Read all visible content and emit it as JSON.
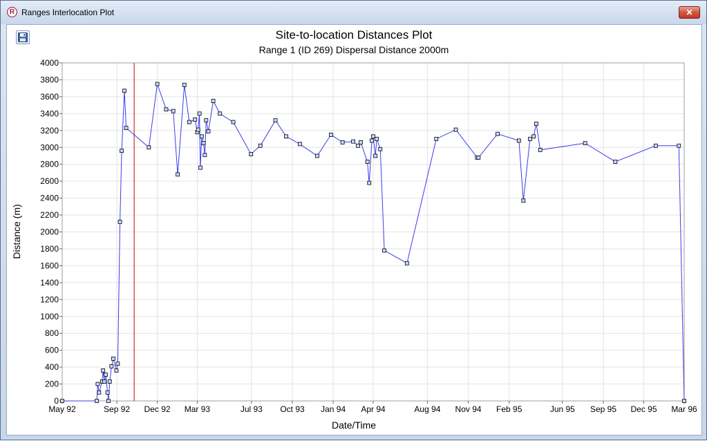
{
  "window": {
    "title": "Ranges Interlocation Plot",
    "app_icon": "r-logo-icon",
    "close_label": "✕"
  },
  "toolbar": {
    "save_icon": "floppy-disk-icon"
  },
  "colors": {
    "series": "#3a3aee",
    "marker_fill": "#c7d9ff",
    "marker_stroke": "#000000",
    "reference_line": "#cc0000",
    "grid": "#e3e3e3"
  },
  "chart_data": {
    "type": "line",
    "title": "Site-to-location Distances Plot",
    "subtitle": "Range 1 (ID 269) Dispersal Distance 2000m",
    "xlabel": "Date/Time",
    "ylabel": "Distance (m)",
    "xlim": [
      "1992-05-01",
      "1996-03-01"
    ],
    "ylim": [
      0,
      4000
    ],
    "grid": true,
    "legend": "none",
    "x_ticks": [
      {
        "date": "1992-05-01",
        "label": "May 92"
      },
      {
        "date": "1992-09-01",
        "label": "Sep 92"
      },
      {
        "date": "1992-12-01",
        "label": "Dec 92"
      },
      {
        "date": "1993-03-01",
        "label": "Mar 93"
      },
      {
        "date": "1993-07-01",
        "label": "Jul 93"
      },
      {
        "date": "1993-10-01",
        "label": "Oct 93"
      },
      {
        "date": "1994-01-01",
        "label": "Jan 94"
      },
      {
        "date": "1994-04-01",
        "label": "Apr 94"
      },
      {
        "date": "1994-08-01",
        "label": "Aug 94"
      },
      {
        "date": "1994-11-01",
        "label": "Nov 94"
      },
      {
        "date": "1995-02-01",
        "label": "Feb 95"
      },
      {
        "date": "1995-06-01",
        "label": "Jun 95"
      },
      {
        "date": "1995-09-01",
        "label": "Sep 95"
      },
      {
        "date": "1995-12-01",
        "label": "Dec 95"
      },
      {
        "date": "1996-03-01",
        "label": "Mar 96"
      }
    ],
    "y_ticks": [
      {
        "value": 0,
        "label": "0"
      },
      {
        "value": 200,
        "label": "200"
      },
      {
        "value": 400,
        "label": "400"
      },
      {
        "value": 600,
        "label": "600"
      },
      {
        "value": 800,
        "label": "800"
      },
      {
        "value": 1000,
        "label": "1000"
      },
      {
        "value": 1200,
        "label": "1200"
      },
      {
        "value": 1400,
        "label": "1400"
      },
      {
        "value": 1600,
        "label": "1600"
      },
      {
        "value": 1800,
        "label": "1800"
      },
      {
        "value": 2000,
        "label": "2000"
      },
      {
        "value": 2200,
        "label": "2200"
      },
      {
        "value": 2400,
        "label": "2400"
      },
      {
        "value": 2600,
        "label": "2600"
      },
      {
        "value": 2800,
        "label": "2800"
      },
      {
        "value": 3000,
        "label": "3000"
      },
      {
        "value": 3200,
        "label": "3200"
      },
      {
        "value": 3400,
        "label": "3400"
      },
      {
        "value": 3600,
        "label": "3600"
      },
      {
        "value": 3800,
        "label": "3800"
      },
      {
        "value": 4000,
        "label": "4000"
      }
    ],
    "reference_line": {
      "x": "1992-10-10"
    },
    "series": [
      {
        "points": [
          [
            "1992-05-01",
            0
          ],
          [
            "1992-07-18",
            0
          ],
          [
            "1992-07-20",
            200
          ],
          [
            "1992-07-23",
            100
          ],
          [
            "1992-07-30",
            230
          ],
          [
            "1992-08-01",
            360
          ],
          [
            "1992-08-04",
            230
          ],
          [
            "1992-08-07",
            310
          ],
          [
            "1992-08-11",
            100
          ],
          [
            "1992-08-13",
            0
          ],
          [
            "1992-08-16",
            230
          ],
          [
            "1992-08-20",
            410
          ],
          [
            "1992-08-24",
            500
          ],
          [
            "1992-08-31",
            360
          ],
          [
            "1992-09-03",
            440
          ],
          [
            "1992-09-08",
            2120
          ],
          [
            "1992-09-12",
            2960
          ],
          [
            "1992-09-18",
            3670
          ],
          [
            "1992-09-22",
            3230
          ],
          [
            "1992-11-12",
            3000
          ],
          [
            "1992-12-01",
            3750
          ],
          [
            "1992-12-21",
            3450
          ],
          [
            "1993-01-06",
            3430
          ],
          [
            "1993-01-16",
            2680
          ],
          [
            "1993-01-31",
            3740
          ],
          [
            "1993-02-11",
            3300
          ],
          [
            "1993-02-24",
            3330
          ],
          [
            "1993-03-01",
            3180
          ],
          [
            "1993-03-03",
            3210
          ],
          [
            "1993-03-06",
            3400
          ],
          [
            "1993-03-08",
            2760
          ],
          [
            "1993-03-11",
            3130
          ],
          [
            "1993-03-15",
            3050
          ],
          [
            "1993-03-18",
            2910
          ],
          [
            "1993-03-21",
            3320
          ],
          [
            "1993-03-26",
            3190
          ],
          [
            "1993-04-06",
            3550
          ],
          [
            "1993-04-21",
            3400
          ],
          [
            "1993-05-21",
            3300
          ],
          [
            "1993-06-30",
            2920
          ],
          [
            "1993-07-21",
            3020
          ],
          [
            "1993-08-24",
            3320
          ],
          [
            "1993-09-17",
            3130
          ],
          [
            "1993-10-18",
            3040
          ],
          [
            "1993-11-26",
            2900
          ],
          [
            "1993-12-27",
            3150
          ],
          [
            "1994-01-22",
            3060
          ],
          [
            "1994-02-15",
            3070
          ],
          [
            "1994-02-26",
            3020
          ],
          [
            "1994-03-04",
            3060
          ],
          [
            "1994-03-19",
            2830
          ],
          [
            "1994-03-23",
            2580
          ],
          [
            "1994-03-29",
            3080
          ],
          [
            "1994-04-01",
            3130
          ],
          [
            "1994-04-06",
            2900
          ],
          [
            "1994-04-09",
            3100
          ],
          [
            "1994-04-17",
            2980
          ],
          [
            "1994-04-26",
            1780
          ],
          [
            "1994-06-16",
            1630
          ],
          [
            "1994-08-21",
            3100
          ],
          [
            "1994-10-04",
            3210
          ],
          [
            "1994-11-21",
            2880
          ],
          [
            "1994-11-24",
            2880
          ],
          [
            "1995-01-06",
            3160
          ],
          [
            "1995-02-23",
            3080
          ],
          [
            "1995-03-05",
            2370
          ],
          [
            "1995-03-20",
            3100
          ],
          [
            "1995-03-28",
            3130
          ],
          [
            "1995-04-03",
            3280
          ],
          [
            "1995-04-12",
            2970
          ],
          [
            "1995-07-22",
            3050
          ],
          [
            "1995-09-28",
            2830
          ],
          [
            "1995-12-28",
            3020
          ],
          [
            "1996-02-18",
            3020
          ],
          [
            "1996-03-01",
            0
          ]
        ]
      }
    ]
  }
}
